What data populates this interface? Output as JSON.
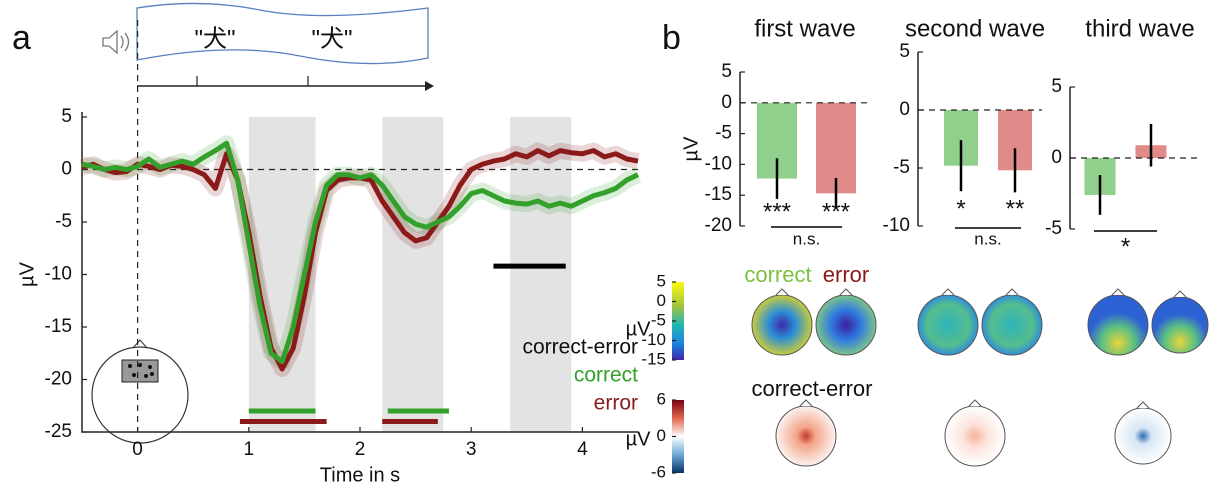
{
  "panel_labels": [
    "a",
    "b"
  ],
  "stimulus": {
    "words": [
      "\"犬\"",
      "\"犬\""
    ]
  },
  "chart_data": [
    {
      "type": "line",
      "xlabel": "Time in s",
      "ylabel": "µV",
      "x": [
        -0.5,
        -0.4,
        -0.3,
        -0.2,
        -0.1,
        0,
        0.1,
        0.2,
        0.3,
        0.4,
        0.5,
        0.6,
        0.7,
        0.8,
        0.9,
        1.0,
        1.1,
        1.2,
        1.3,
        1.4,
        1.5,
        1.6,
        1.7,
        1.8,
        1.9,
        2.0,
        2.1,
        2.2,
        2.3,
        2.4,
        2.5,
        2.6,
        2.7,
        2.8,
        2.9,
        3.0,
        3.1,
        3.2,
        3.3,
        3.4,
        3.5,
        3.6,
        3.7,
        3.8,
        3.9,
        4.0,
        4.1,
        4.2,
        4.3,
        4.4,
        4.5
      ],
      "series": [
        {
          "name": "correct",
          "color": "#33a02c",
          "values": [
            0.5,
            0.3,
            0,
            0.2,
            0,
            0.3,
            1,
            0.2,
            0.5,
            0.8,
            0.5,
            1.2,
            1.8,
            2.5,
            -1,
            -7,
            -13,
            -17.5,
            -18.3,
            -15,
            -10,
            -5,
            -1.5,
            -0.5,
            -0.5,
            -0.8,
            -0.5,
            -1.5,
            -3,
            -4.5,
            -5.2,
            -5.5,
            -5,
            -4.5,
            -3.5,
            -2.3,
            -2,
            -2.5,
            -3,
            -3.2,
            -3.3,
            -3,
            -3.5,
            -3.2,
            -3.5,
            -3,
            -2.5,
            -2.2,
            -1.8,
            -1,
            -0.5
          ]
        },
        {
          "name": "error",
          "color": "#8b1a1a",
          "values": [
            0.2,
            0.5,
            0,
            -0.3,
            -0.2,
            0.5,
            0.3,
            0,
            0.4,
            0.3,
            0,
            -0.5,
            -1.8,
            1.5,
            -1,
            -6,
            -12,
            -17,
            -19,
            -17,
            -12,
            -6,
            -2,
            -1,
            -0.8,
            -0.8,
            -1,
            -3,
            -4.5,
            -6,
            -6.8,
            -6.5,
            -5,
            -3.5,
            -1.5,
            0,
            0.5,
            0.8,
            1,
            1.5,
            1.2,
            1.8,
            1.3,
            1.8,
            1.6,
            1.5,
            1.8,
            1.2,
            1.5,
            1,
            0.8
          ]
        }
      ],
      "legend_title": "correct-error",
      "xlim": [
        -0.5,
        4.5
      ],
      "ylim": [
        -25,
        5
      ],
      "xticks": [
        0,
        1,
        2,
        3,
        4
      ],
      "yticks": [
        -25,
        -20,
        -15,
        -10,
        -5,
        0,
        5
      ],
      "windows": [
        [
          1,
          1.6
        ],
        [
          2.2,
          2.75
        ],
        [
          3.35,
          3.9
        ]
      ],
      "significance": [
        {
          "color": "#000000",
          "y": -9.2,
          "x": [
            3.2,
            3.85
          ]
        },
        {
          "color": "#33a02c",
          "y": -23,
          "x": [
            1,
            1.6
          ]
        },
        {
          "color": "#33a02c",
          "y": -23,
          "x": [
            2.25,
            2.8
          ]
        },
        {
          "color": "#8b1a1a",
          "y": -24,
          "x": [
            0.92,
            1.7
          ]
        },
        {
          "color": "#8b1a1a",
          "y": -24,
          "x": [
            2.2,
            2.7
          ]
        }
      ]
    },
    {
      "type": "bar",
      "title": "first wave",
      "ylabel": "µV",
      "values": [
        -12.3,
        -14.7
      ],
      "errors": [
        3.3,
        2.5
      ],
      "colors": [
        "#90cf8c",
        "#e08a8a"
      ],
      "ylim": [
        -20,
        5
      ],
      "yticks": [
        -20,
        -15,
        -10,
        -5,
        0,
        5
      ],
      "annotations": [
        "***",
        "***",
        "n.s."
      ]
    },
    {
      "type": "bar",
      "title": "second wave",
      "values": [
        -4.8,
        -5.2
      ],
      "errors": [
        2.2,
        1.9
      ],
      "colors": [
        "#90cf8c",
        "#e08a8a"
      ],
      "ylim": [
        -10,
        5
      ],
      "yticks": [
        -10,
        -5,
        0,
        5
      ],
      "annotations": [
        "*",
        "**",
        "n.s."
      ]
    },
    {
      "type": "bar",
      "title": "third wave",
      "values": [
        -2.6,
        0.9
      ],
      "errors": [
        1.4,
        1.5
      ],
      "colors": [
        "#90cf8c",
        "#e08a8a"
      ],
      "ylim": [
        -5,
        5
      ],
      "yticks": [
        -5,
        0,
        5
      ],
      "annotations": [
        "*"
      ]
    }
  ],
  "topographies": {
    "ylabel": "µV",
    "conditions": [
      "correct",
      "error"
    ],
    "difference": "correct-error",
    "rows": [
      {
        "clim": [
          -15,
          5
        ],
        "ticks": [
          5,
          0,
          -5,
          -10,
          -15
        ]
      },
      {
        "clim": [
          -6,
          6
        ],
        "ticks": [
          6,
          0,
          -6
        ]
      }
    ]
  }
}
